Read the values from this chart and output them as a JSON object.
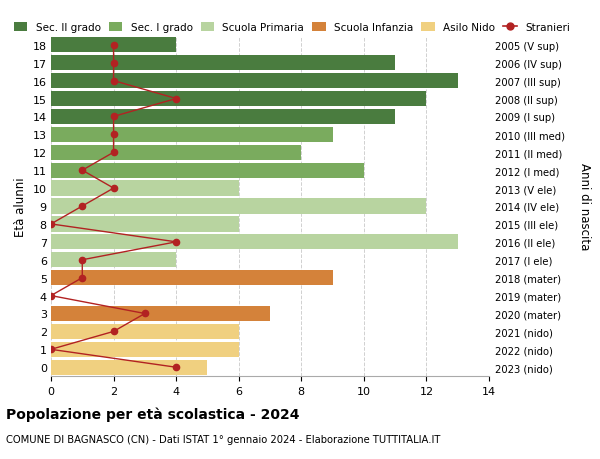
{
  "ages": [
    18,
    17,
    16,
    15,
    14,
    13,
    12,
    11,
    10,
    9,
    8,
    7,
    6,
    5,
    4,
    3,
    2,
    1,
    0
  ],
  "right_labels": [
    "2005 (V sup)",
    "2006 (IV sup)",
    "2007 (III sup)",
    "2008 (II sup)",
    "2009 (I sup)",
    "2010 (III med)",
    "2011 (II med)",
    "2012 (I med)",
    "2013 (V ele)",
    "2014 (IV ele)",
    "2015 (III ele)",
    "2016 (II ele)",
    "2017 (I ele)",
    "2018 (mater)",
    "2019 (mater)",
    "2020 (mater)",
    "2021 (nido)",
    "2022 (nido)",
    "2023 (nido)"
  ],
  "bar_values": [
    4,
    11,
    13,
    12,
    11,
    9,
    8,
    10,
    6,
    12,
    6,
    13,
    4,
    9,
    0,
    7,
    6,
    6,
    5
  ],
  "bar_colors": [
    "#4a7c3f",
    "#4a7c3f",
    "#4a7c3f",
    "#4a7c3f",
    "#4a7c3f",
    "#7aab5e",
    "#7aab5e",
    "#7aab5e",
    "#b8d4a0",
    "#b8d4a0",
    "#b8d4a0",
    "#b8d4a0",
    "#b8d4a0",
    "#d4823a",
    "#d4823a",
    "#d4823a",
    "#f0d080",
    "#f0d080",
    "#f0d080"
  ],
  "stranieri_values": [
    2,
    2,
    2,
    4,
    2,
    2,
    2,
    1,
    2,
    1,
    0,
    4,
    1,
    1,
    0,
    3,
    2,
    0,
    4
  ],
  "title_bold": "Popolazione per età scolastica - 2024",
  "subtitle": "COMUNE DI BAGNASCO (CN) - Dati ISTAT 1° gennaio 2024 - Elaborazione TUTTITALIA.IT",
  "ylabel": "Età alunni",
  "right_ylabel": "Anni di nascita",
  "xlim": [
    0,
    14
  ],
  "xticks": [
    0,
    2,
    4,
    6,
    8,
    10,
    12,
    14
  ],
  "ylim": [
    -0.5,
    18.5
  ],
  "legend_labels": [
    "Sec. II grado",
    "Sec. I grado",
    "Scuola Primaria",
    "Scuola Infanzia",
    "Asilo Nido",
    "Stranieri"
  ],
  "legend_colors": [
    "#4a7c3f",
    "#7aab5e",
    "#b8d4a0",
    "#d4823a",
    "#f0d080",
    "#b22222"
  ],
  "bg_color": "#ffffff",
  "grid_color": "#d0d0d0",
  "bar_height": 0.85,
  "stranieri_color": "#b22222"
}
